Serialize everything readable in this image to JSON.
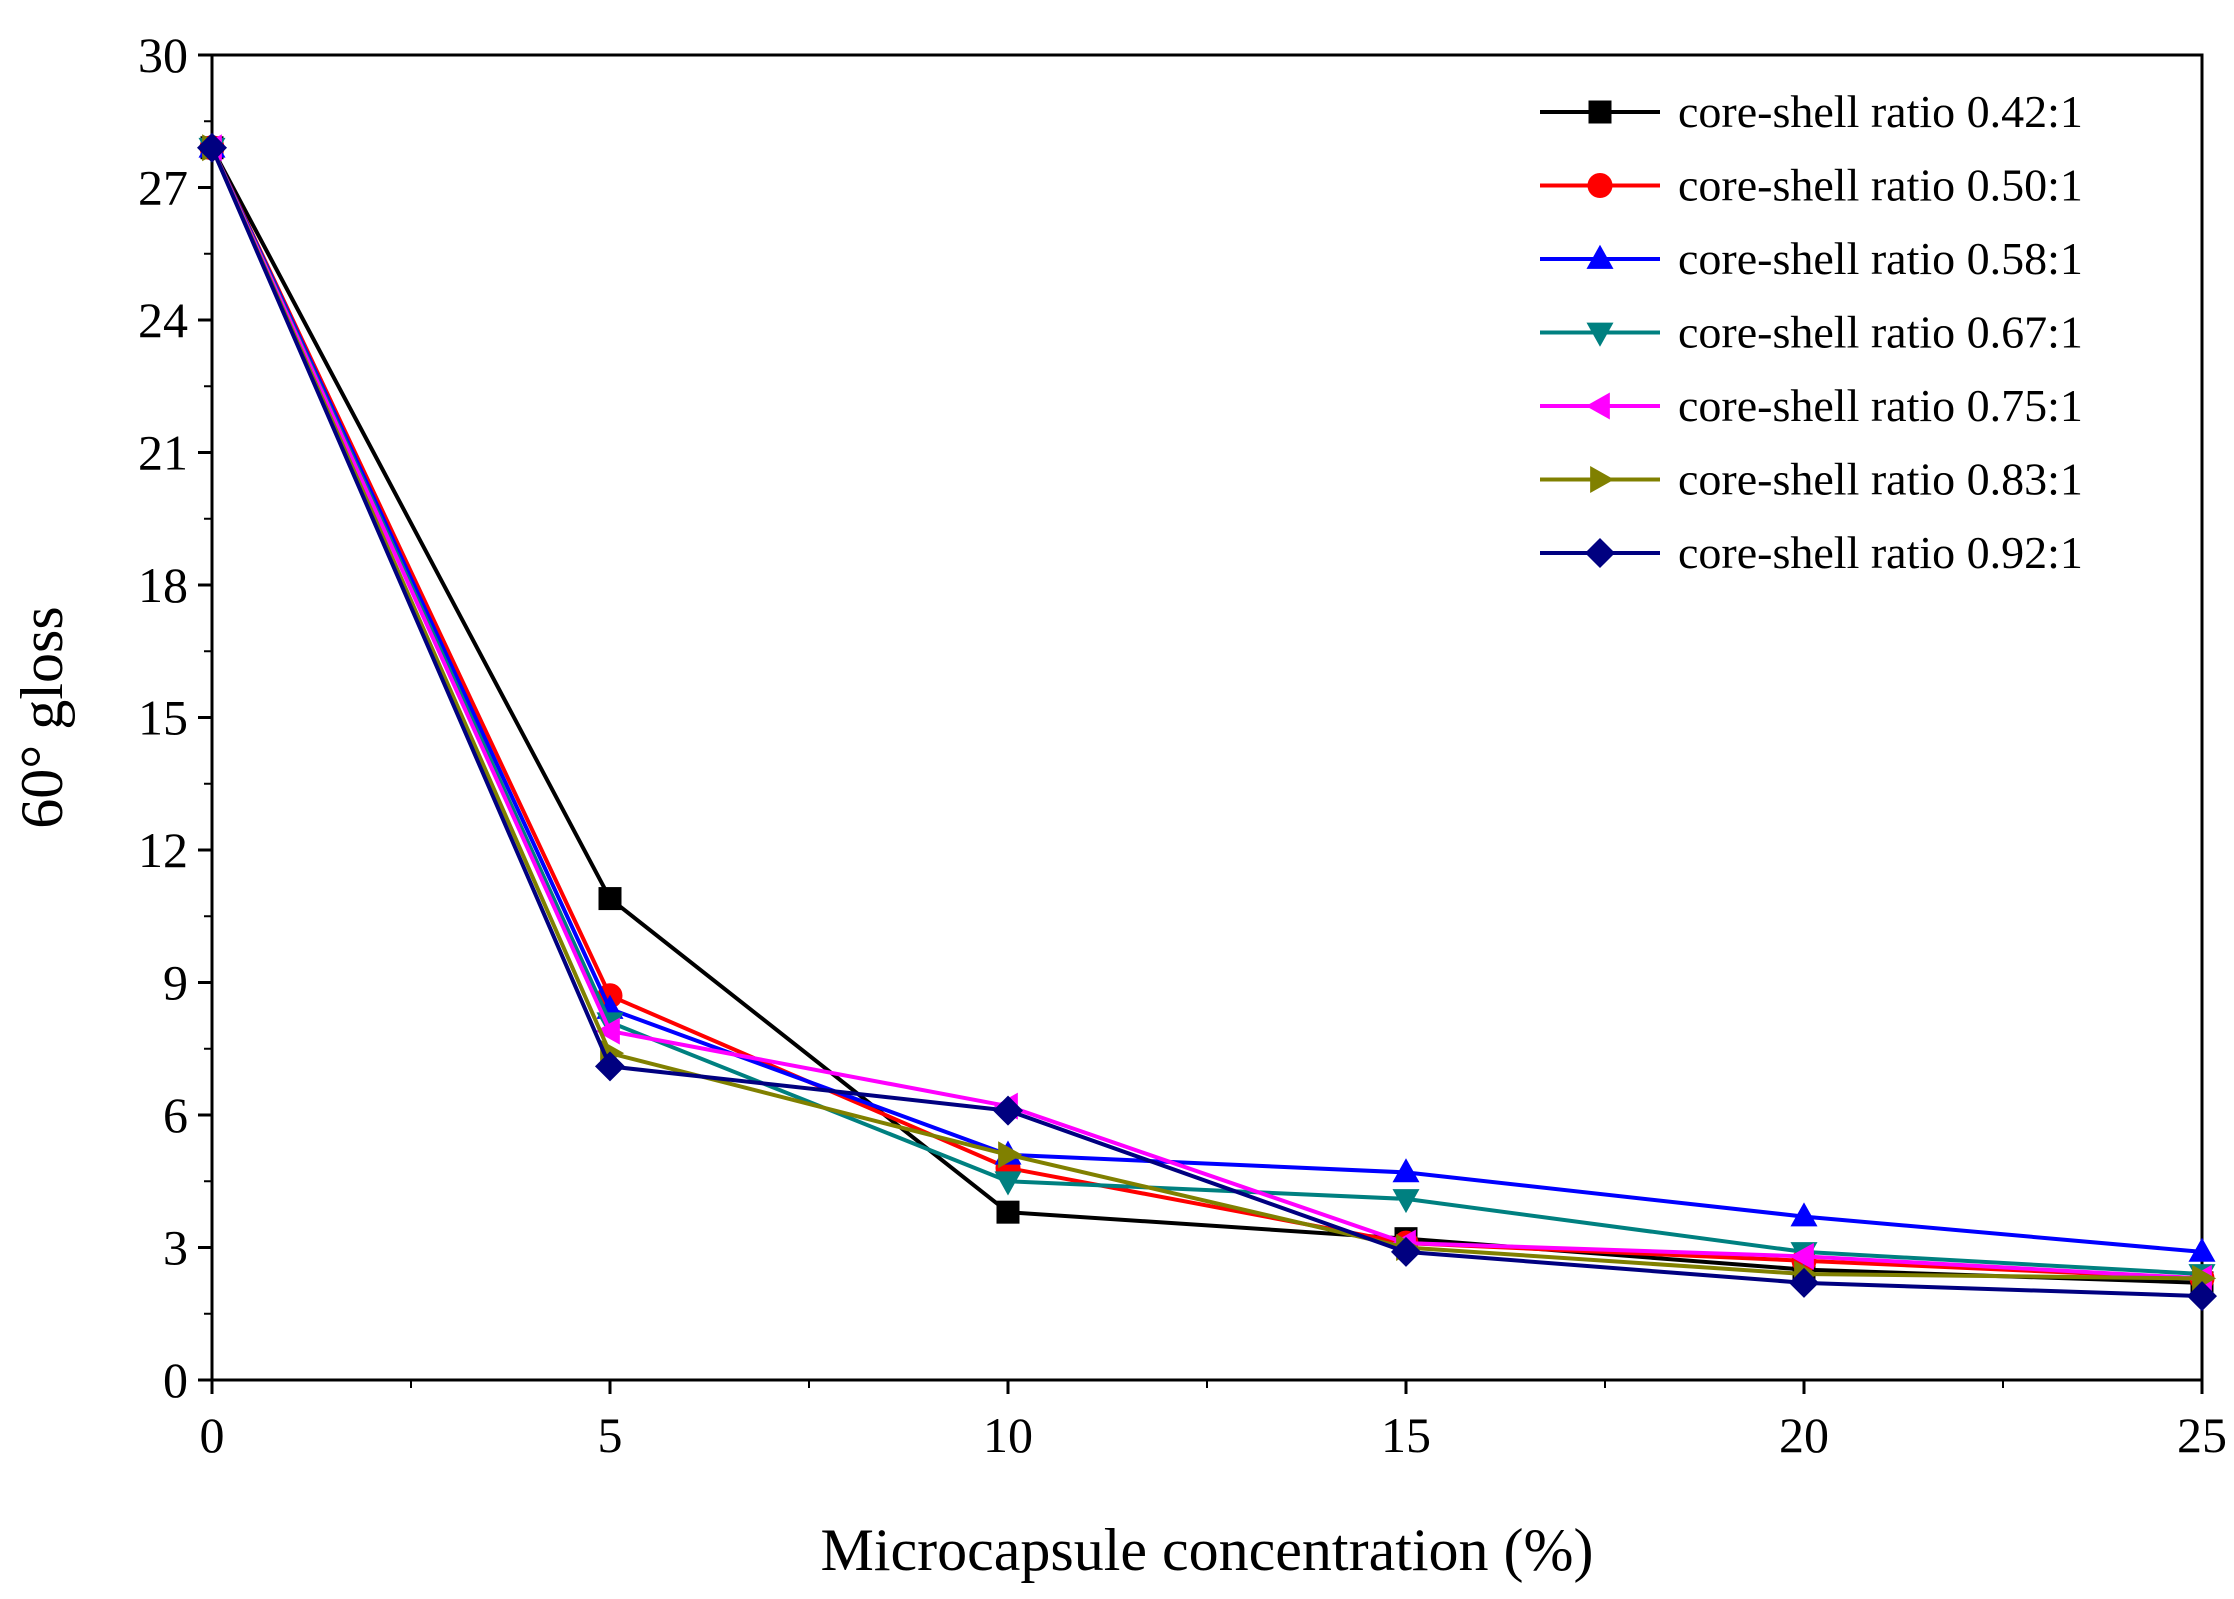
{
  "chart_data": {
    "type": "line",
    "title": "",
    "xlabel": "Microcapsule concentration (%)",
    "ylabel": "60° gloss",
    "xlim": [
      0,
      25
    ],
    "ylim": [
      0,
      30
    ],
    "xticks": [
      0,
      5,
      10,
      15,
      20,
      25
    ],
    "yticks": [
      0,
      3,
      6,
      9,
      12,
      15,
      18,
      21,
      24,
      27,
      30
    ],
    "x": [
      0,
      5,
      10,
      15,
      20,
      25
    ],
    "grid": false,
    "legend_position": "top-right",
    "series": [
      {
        "name": "core-shell ratio 0.42:1",
        "color": "#000000",
        "marker": "square",
        "values": [
          27.9,
          10.9,
          3.8,
          3.2,
          2.5,
          2.2
        ]
      },
      {
        "name": "core-shell ratio 0.50:1",
        "color": "#ff0000",
        "marker": "circle",
        "values": [
          27.9,
          8.7,
          4.8,
          3.1,
          2.7,
          2.3
        ]
      },
      {
        "name": "core-shell ratio 0.58:1",
        "color": "#0000ff",
        "marker": "triangle-up",
        "values": [
          27.9,
          8.4,
          5.1,
          4.7,
          3.7,
          2.9
        ]
      },
      {
        "name": "core-shell ratio 0.67:1",
        "color": "#008080",
        "marker": "triangle-down",
        "values": [
          27.9,
          8.1,
          4.5,
          4.1,
          2.9,
          2.4
        ]
      },
      {
        "name": "core-shell ratio 0.75:1",
        "color": "#ff00ff",
        "marker": "triangle-left",
        "values": [
          27.9,
          7.9,
          6.2,
          3.1,
          2.8,
          2.3
        ]
      },
      {
        "name": "core-shell ratio 0.83:1",
        "color": "#808000",
        "marker": "triangle-right",
        "values": [
          27.9,
          7.4,
          5.1,
          3.0,
          2.4,
          2.3
        ]
      },
      {
        "name": "core-shell ratio 0.92:1",
        "color": "#000080",
        "marker": "diamond",
        "values": [
          27.9,
          7.1,
          6.1,
          2.9,
          2.2,
          1.9
        ]
      }
    ]
  }
}
